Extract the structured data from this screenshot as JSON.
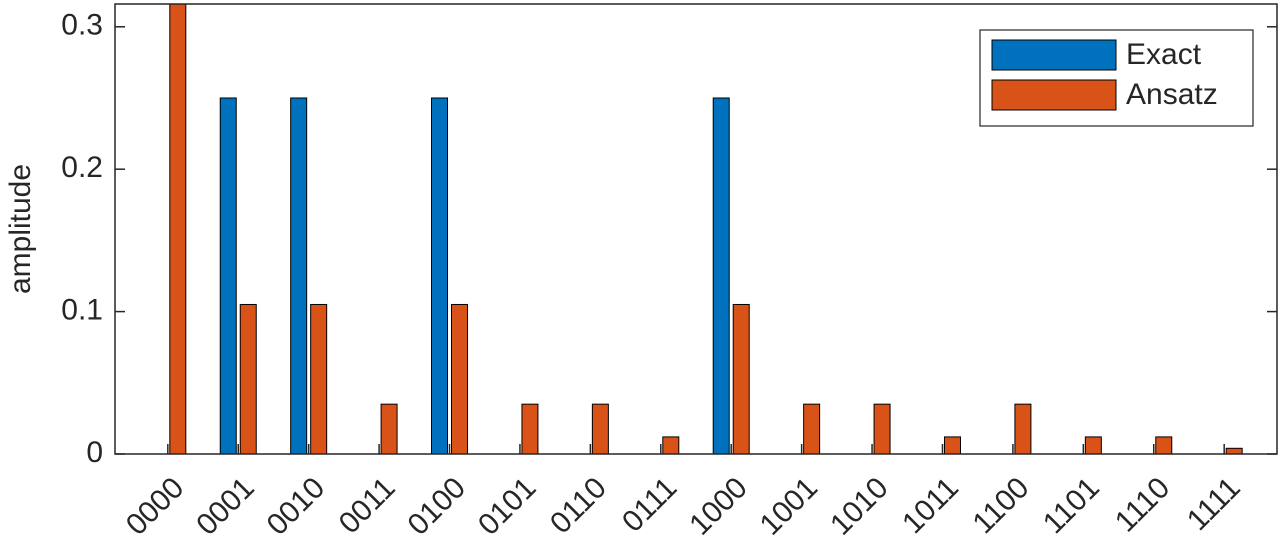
{
  "chart_data": {
    "type": "bar",
    "y_label": "amplitude",
    "categories": [
      "0000",
      "0001",
      "0010",
      "0011",
      "0100",
      "0101",
      "0110",
      "0111",
      "1000",
      "1001",
      "1010",
      "1011",
      "1100",
      "1101",
      "1110",
      "1111"
    ],
    "series": [
      {
        "name": "Exact",
        "color": "#0072BD",
        "values": [
          0,
          0.25,
          0.25,
          0,
          0.25,
          0,
          0,
          0,
          0.25,
          0,
          0,
          0,
          0,
          0,
          0,
          0
        ]
      },
      {
        "name": "Ansatz",
        "color": "#D95319",
        "values": [
          0.316,
          0.105,
          0.105,
          0.035,
          0.105,
          0.035,
          0.035,
          0.012,
          0.105,
          0.035,
          0.035,
          0.012,
          0.035,
          0.012,
          0.012,
          0.004
        ]
      }
    ],
    "ylim": [
      0,
      0.316
    ],
    "yticks": [
      0,
      0.1,
      0.2,
      0.3
    ],
    "grid": false,
    "legend": "upper right"
  }
}
